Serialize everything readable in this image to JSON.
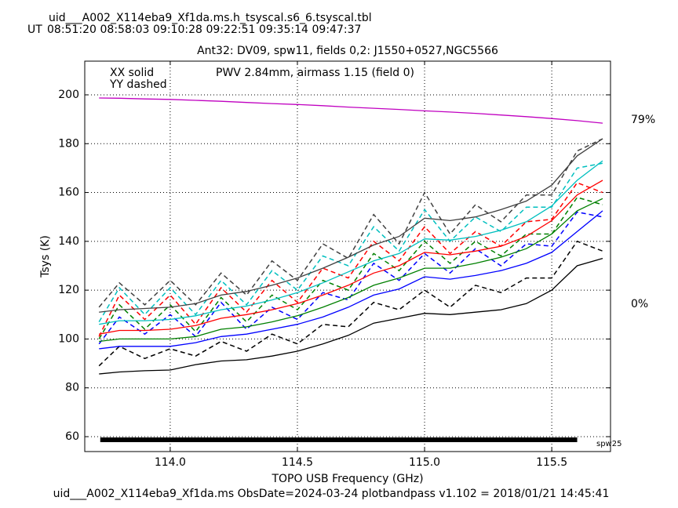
{
  "chart_data": {
    "type": "line",
    "title": "uid___A002_X114eba9_Xf1da.ms.h_tsyscal.s6_6.tsyscal.tbl",
    "ut_label": "UT",
    "subtitle": "Ant32: DV09,  spw11,  fields 0,2: J1550+0527,NGC5566",
    "solid_label": "XX solid",
    "dashed_label": "YY dashed",
    "annotation": "PWV 2.84mm, airmass 1.15 (field 0)",
    "xlabel": "TOPO USB Frequency (GHz)",
    "ylabel": "Tsys (K)",
    "footer": "uid___A002_X114eba9_Xf1da.ms  ObsDate=2024-03-24   plotbandpass v1.102 = 2018/01/21 14:45:41",
    "xlim": [
      113.664,
      115.731
    ],
    "ylim": [
      53.9,
      213.8
    ],
    "y2lim": [
      -63.2,
      104.2
    ],
    "xticks": [
      {
        "value": 114,
        "label": "114.0"
      },
      {
        "value": 114.5,
        "label": "114.5"
      },
      {
        "value": 115,
        "label": "115.0"
      },
      {
        "value": 115.5,
        "label": "115.5"
      }
    ],
    "yticks": [
      60,
      80,
      100,
      120,
      140,
      160,
      180,
      200
    ],
    "y2ticks": [
      {
        "value": 0,
        "label": "0%"
      },
      {
        "value": 79,
        "label": "79%"
      }
    ],
    "grid": true,
    "x": [
      113.72,
      113.8,
      113.9,
      114.0,
      114.1,
      114.2,
      114.3,
      114.4,
      114.5,
      114.6,
      114.7,
      114.8,
      114.9,
      115.0,
      115.1,
      115.2,
      115.3,
      115.4,
      115.5,
      115.6,
      115.7
    ],
    "series": [
      {
        "name": "08:51:20",
        "color": "#000000",
        "values": [
          85.7,
          86.5,
          87,
          87.3,
          89.5,
          91,
          91.5,
          93,
          95,
          98,
          101.5,
          106.5,
          108.5,
          110.5,
          110,
          111,
          112,
          114.5,
          120,
          130,
          133
        ],
        "dashed_values": [
          89,
          97,
          92,
          96,
          93,
          99,
          95,
          102,
          98,
          106,
          105,
          115,
          112,
          120,
          113,
          122,
          119,
          125,
          125,
          140,
          136
        ]
      },
      {
        "name": "08:58:03",
        "color": "#0000ff",
        "values": [
          96,
          97,
          97,
          97,
          98.5,
          101,
          102,
          104,
          106,
          109,
          113,
          118,
          120.5,
          125.5,
          124.5,
          126,
          128,
          131,
          135.5,
          144,
          152.5
        ],
        "dashed_values": [
          98,
          109,
          102,
          110,
          101,
          115,
          104,
          113,
          108,
          119,
          116,
          131,
          124,
          135,
          127,
          137,
          130,
          139,
          138,
          152,
          150
        ]
      },
      {
        "name": "09:10:28",
        "color": "#008000",
        "values": [
          99,
          100,
          100,
          100,
          101,
          104,
          105,
          107,
          109.5,
          113,
          117,
          122,
          125,
          129,
          129,
          131,
          133.5,
          137,
          143,
          152.5,
          157.5
        ],
        "dashed_values": [
          100,
          114,
          104,
          114,
          103,
          117,
          107,
          118,
          112,
          124,
          120,
          135,
          128,
          140,
          131,
          140,
          134,
          143,
          143,
          158,
          155
        ]
      },
      {
        "name": "09:22:51",
        "color": "#ff0000",
        "values": [
          102,
          103.5,
          103.5,
          104,
          105.5,
          108.5,
          110,
          112,
          114.5,
          118,
          122,
          127,
          130,
          135.5,
          134.5,
          136,
          138,
          142,
          148.5,
          159,
          165
        ],
        "dashed_values": [
          101,
          118,
          108,
          118,
          106,
          121,
          111,
          124,
          115,
          129,
          125,
          140,
          132,
          146,
          135,
          144,
          138,
          148,
          149,
          164,
          160
        ]
      },
      {
        "name": "09:35:14",
        "color": "#00bfbf",
        "values": [
          106,
          107.5,
          107.5,
          108,
          109.5,
          112,
          113.5,
          116,
          119,
          123,
          127.5,
          132,
          135,
          141,
          140.5,
          142,
          144.5,
          148,
          154.5,
          165,
          173
        ],
        "dashed_values": [
          107,
          121,
          110,
          121,
          110,
          124,
          114,
          128,
          120,
          134,
          130,
          146,
          136,
          153,
          140,
          150,
          144,
          154,
          154,
          170,
          172
        ]
      },
      {
        "name": "09:47:37",
        "color": "#404040",
        "values": [
          111,
          112,
          112.5,
          113,
          114.5,
          118,
          119.5,
          122,
          125,
          129,
          133.5,
          138.5,
          142,
          149.5,
          148.5,
          150,
          153,
          156.5,
          163,
          175,
          182
        ],
        "dashed_values": [
          113,
          123,
          114,
          124,
          114,
          127,
          118,
          132,
          124,
          139,
          133,
          151,
          139,
          160,
          143,
          155,
          148,
          159,
          159,
          177,
          182
        ]
      }
    ],
    "transmission": {
      "color": "#c000c0",
      "axis": "y2",
      "values": [
        88.4,
        88.3,
        88.0,
        87.8,
        87.4,
        87.0,
        86.5,
        86.0,
        85.6,
        85.1,
        84.5,
        84.0,
        83.5,
        82.9,
        82.4,
        81.8,
        81.1,
        80.4,
        79.6,
        78.7,
        77.6
      ]
    },
    "spw_bar": {
      "label": "spw25",
      "x": [
        113.725,
        115.6
      ],
      "y": 58.7
    }
  }
}
